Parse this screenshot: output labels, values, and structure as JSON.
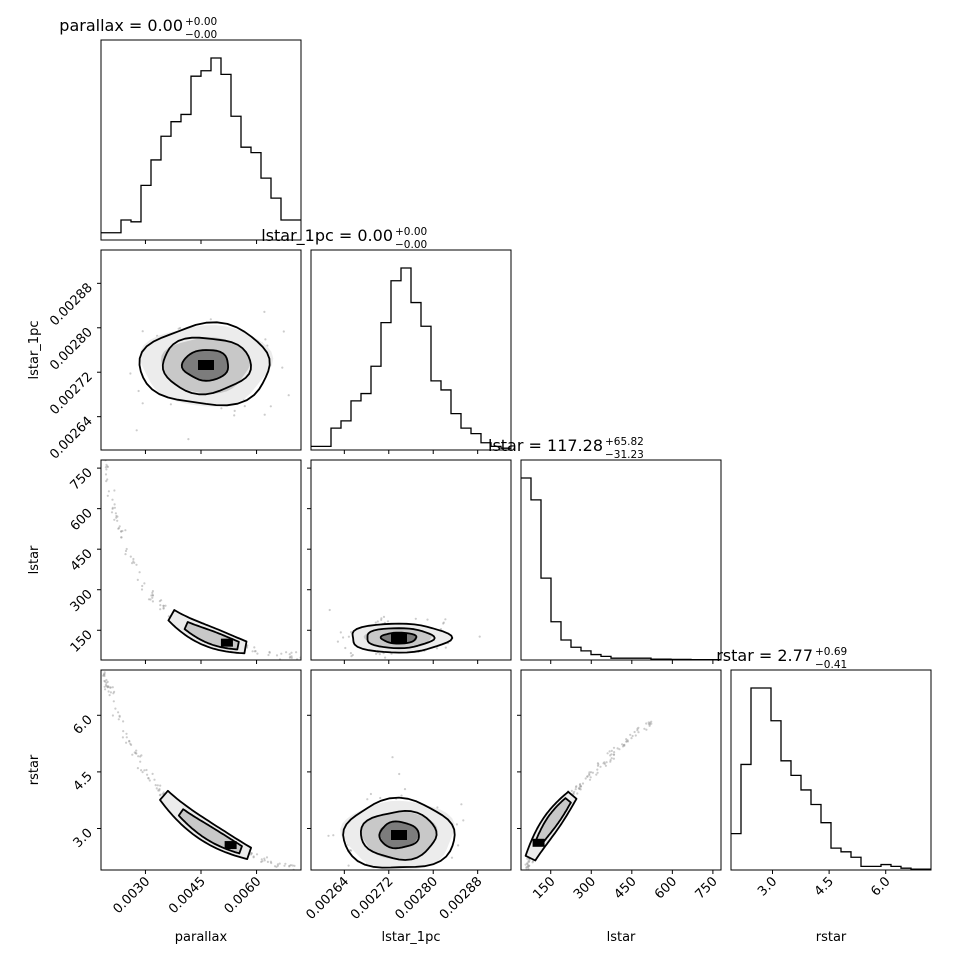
{
  "chart_data": {
    "type": "corner",
    "parameters": [
      "parallax",
      "lstar_1pc",
      "lstar",
      "rstar"
    ],
    "titles": [
      {
        "param": "parallax",
        "median": "0.00",
        "plus": "+0.00",
        "minus": "−0.00"
      },
      {
        "param": "lstar_1pc",
        "median": "0.00",
        "plus": "+0.00",
        "minus": "−0.00"
      },
      {
        "param": "lstar",
        "median": "117.28",
        "plus": "+65.82",
        "minus": "−31.23"
      },
      {
        "param": "rstar",
        "median": "2.77",
        "plus": "+0.69",
        "minus": "−0.41"
      }
    ],
    "axes": {
      "parallax": {
        "range": [
          0.0018,
          0.0072
        ],
        "ticks": [
          "0.0030",
          "0.0045",
          "0.0060"
        ],
        "tick_values": [
          0.003,
          0.0045,
          0.006
        ]
      },
      "lstar_1pc": {
        "range": [
          0.00258,
          0.00294
        ],
        "ticks": [
          "0.00264",
          "0.00272",
          "0.00280",
          "0.00288"
        ],
        "tick_values": [
          0.00264,
          0.00272,
          0.0028,
          0.00288
        ]
      },
      "lstar": {
        "range": [
          40,
          780
        ],
        "ticks": [
          "150",
          "300",
          "450",
          "600",
          "750"
        ],
        "tick_values": [
          150,
          300,
          450,
          600,
          750
        ]
      },
      "rstar": {
        "range": [
          1.9,
          7.2
        ],
        "ticks": [
          "3.0",
          "4.5",
          "6.0"
        ],
        "tick_values": [
          3.0,
          4.5,
          6.0
        ]
      }
    },
    "histograms": {
      "parallax": [
        4,
        4,
        11,
        10,
        30,
        44,
        57,
        65,
        69,
        90,
        93,
        100,
        91,
        68,
        51,
        48,
        34,
        23,
        11,
        11
      ],
      "lstar_1pc": [
        2,
        2,
        12,
        16,
        27,
        31,
        46,
        70,
        93,
        100,
        81,
        68,
        38,
        33,
        20,
        12,
        9,
        4,
        2,
        1
      ],
      "lstar": [
        100,
        88,
        45,
        21,
        11,
        7,
        5,
        3,
        2,
        1,
        1,
        1,
        1,
        0.5,
        0.5,
        0.3,
        0.3,
        0.2,
        0.2,
        0.2
      ],
      "rstar": [
        20,
        58,
        100,
        100,
        82,
        60,
        52,
        44,
        36,
        26,
        12,
        10,
        7,
        2,
        2,
        3,
        2,
        1,
        0.5,
        0.5
      ]
    },
    "grid": false,
    "legend": "none"
  }
}
